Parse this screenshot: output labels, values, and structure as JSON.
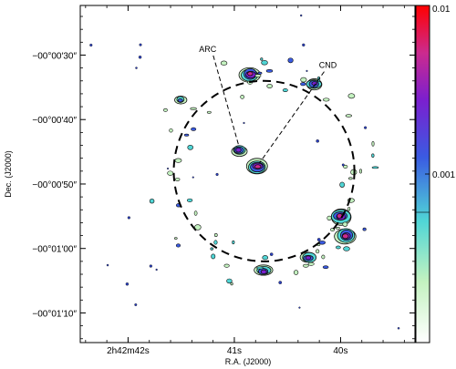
{
  "chart_data": {
    "type": "contour_map",
    "xlabel": "R.A. (J2000)",
    "ylabel": "Dec. (J2000)",
    "x_ticks": [
      {
        "value": 42,
        "text": "2h42m42s"
      },
      {
        "value": 41,
        "text": "41s"
      },
      {
        "value": 40,
        "text": "40s"
      }
    ],
    "y_ticks": [
      {
        "value": 30,
        "text": "−00°00′30″"
      },
      {
        "value": 40,
        "text": "−00°00′40″"
      },
      {
        "value": 50,
        "text": "−00°00′50″"
      },
      {
        "value": 60,
        "text": "−00°01′00″"
      },
      {
        "value": 70,
        "text": "−00°01′10″"
      }
    ],
    "xlim": [
      42.45,
      39.3
    ],
    "ylim_offset_arcsec": [
      22.3,
      74.6
    ],
    "colorbar": {
      "scale": "log",
      "range": [
        0.0001,
        0.01
      ],
      "tick_labels": [
        {
          "value": 0.01,
          "text": "0.01"
        },
        {
          "value": 0.001,
          "text": "0.001"
        }
      ],
      "colors": [
        "#ffffff",
        "#c4f2c0",
        "#50d6d6",
        "#3a5be2",
        "#7b1fcf",
        "#cc2a8e",
        "#ff0000"
      ]
    },
    "ring": {
      "center_x": 40.72,
      "center_y": 48.0,
      "radius_arcsec": 14.0,
      "style": "dashed"
    },
    "annotations": [
      {
        "text": "ARC",
        "x": 41.25,
        "y": 29.5
      },
      {
        "text": "CND",
        "x": 40.12,
        "y": 32.0
      }
    ],
    "features": [
      {
        "name": "central-source",
        "x": 40.78,
        "y": 47.3,
        "peak": "high"
      },
      {
        "name": "arc-clump",
        "x": 40.96,
        "y": 44.8,
        "peak": "medium"
      },
      {
        "name": "ring-north",
        "x": 40.85,
        "y": 33.0,
        "peak": "high"
      },
      {
        "name": "ring-northeast",
        "x": 40.25,
        "y": 34.5,
        "peak": "medium"
      },
      {
        "name": "ring-east-upper",
        "x": 40.0,
        "y": 55.0,
        "peak": "high"
      },
      {
        "name": "ring-east-lower",
        "x": 39.95,
        "y": 58.0,
        "peak": "high"
      },
      {
        "name": "ring-southeast",
        "x": 40.3,
        "y": 61.5,
        "peak": "medium"
      },
      {
        "name": "ring-south",
        "x": 40.72,
        "y": 63.5,
        "peak": "medium"
      },
      {
        "name": "ring-west",
        "x": 41.5,
        "y": 37.0,
        "peak": "low"
      }
    ]
  }
}
